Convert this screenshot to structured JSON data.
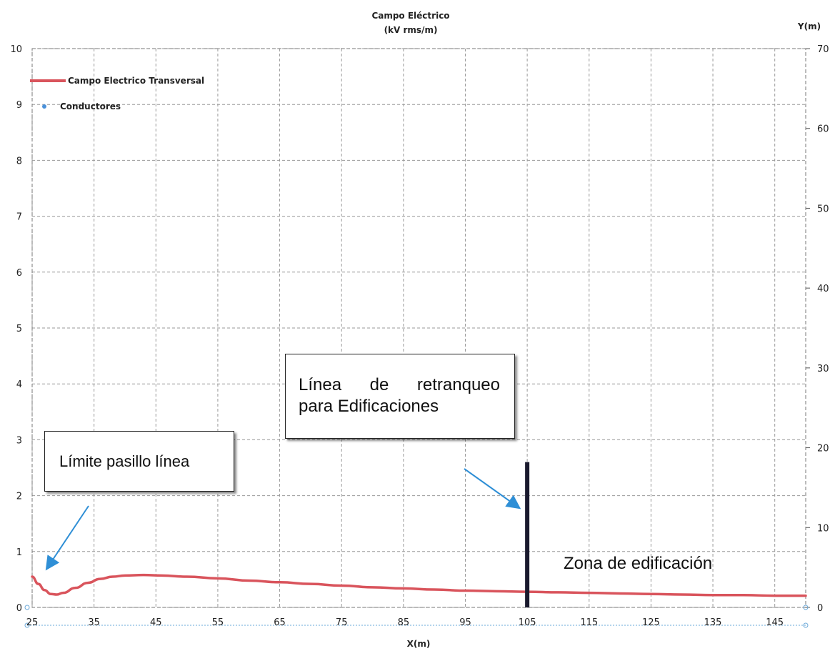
{
  "chart_data": {
    "type": "line",
    "title_line1": "Campo Eléctrico",
    "title_line2": "(kV rms/m)",
    "xlabel": "X(m)",
    "y2label": "Y(m)",
    "xlim": [
      25,
      150
    ],
    "ylim": [
      0,
      10
    ],
    "y2lim": [
      0,
      70
    ],
    "x_ticks": [
      "25",
      "35",
      "45",
      "55",
      "65",
      "75",
      "85",
      "95",
      "105",
      "115",
      "125",
      "135",
      "145"
    ],
    "y_ticks": [
      "0",
      "1",
      "2",
      "3",
      "4",
      "5",
      "6",
      "7",
      "8",
      "9",
      "10"
    ],
    "y2_ticks": [
      "0",
      "10",
      "20",
      "30",
      "40",
      "50",
      "60",
      "70"
    ],
    "grid": true,
    "legend_position": "top-left",
    "series": [
      {
        "name": "Campo Electrico Transversal",
        "color": "#d9545c",
        "x": [
          25,
          26,
          27,
          28,
          29,
          30,
          32,
          34,
          36,
          38,
          40,
          43,
          46,
          50,
          55,
          60,
          65,
          70,
          75,
          80,
          85,
          90,
          95,
          100,
          105,
          110,
          115,
          120,
          125,
          130,
          135,
          140,
          145,
          150
        ],
        "y": [
          0.55,
          0.42,
          0.31,
          0.24,
          0.23,
          0.26,
          0.35,
          0.44,
          0.51,
          0.55,
          0.57,
          0.58,
          0.57,
          0.55,
          0.52,
          0.48,
          0.45,
          0.42,
          0.39,
          0.36,
          0.34,
          0.32,
          0.3,
          0.29,
          0.28,
          0.27,
          0.26,
          0.25,
          0.24,
          0.23,
          0.22,
          0.22,
          0.21,
          0.21
        ]
      },
      {
        "name": "Conductores",
        "color": "#4a90d9"
      }
    ],
    "setback_line": {
      "x": 105,
      "y_top": 2.6,
      "color": "#1a1a2e"
    },
    "annotations": {
      "limite": "Límite pasillo línea",
      "retranqueo_line1": "Línea de retranqueo",
      "retranqueo_line2": "para Edificaciones",
      "zona": "Zona de edificación"
    }
  }
}
